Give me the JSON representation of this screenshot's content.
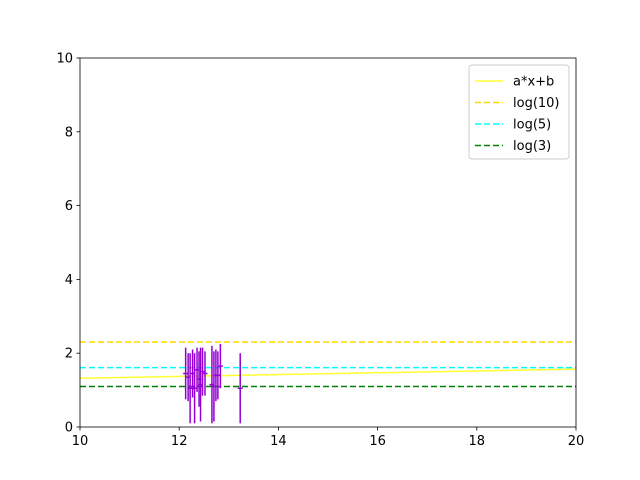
{
  "chart_data": {
    "type": "line",
    "title": "",
    "xlabel": "",
    "ylabel": "",
    "xlim": [
      10,
      20
    ],
    "ylim": [
      0,
      10
    ],
    "xticks": [
      10,
      12,
      14,
      16,
      18,
      20
    ],
    "yticks": [
      0,
      2,
      4,
      6,
      8,
      10
    ],
    "grid": false,
    "legend_position": "upper-right",
    "series": [
      {
        "name": "a*x+b",
        "style": "solid",
        "color": "#ffff33",
        "x": [
          10,
          20
        ],
        "y": [
          1.32,
          1.57
        ]
      },
      {
        "name": "log(10)",
        "style": "dashed",
        "color": "#ffd700",
        "x": [
          10,
          20
        ],
        "y": [
          2.3026,
          2.3026
        ]
      },
      {
        "name": "log(5)",
        "style": "dashed",
        "color": "#00ffff",
        "x": [
          10,
          20
        ],
        "y": [
          1.6094,
          1.6094
        ]
      },
      {
        "name": "log(3)",
        "style": "dashed",
        "color": "#008000",
        "x": [
          10,
          20
        ],
        "y": [
          1.0986,
          1.0986
        ]
      }
    ],
    "errorbars": {
      "color": "#9400d3",
      "points": [
        {
          "x": 12.13,
          "y": 1.45,
          "yerr": 0.7,
          "xerr": 0.05
        },
        {
          "x": 12.18,
          "y": 1.35,
          "yerr": 0.65,
          "xerr": 0.05
        },
        {
          "x": 12.22,
          "y": 1.05,
          "yerr": 0.95,
          "xerr": 0.05
        },
        {
          "x": 12.27,
          "y": 1.45,
          "yerr": 0.65,
          "xerr": 0.05
        },
        {
          "x": 12.31,
          "y": 1.05,
          "yerr": 0.95,
          "xerr": 0.05
        },
        {
          "x": 12.36,
          "y": 1.55,
          "yerr": 0.6,
          "xerr": 0.05
        },
        {
          "x": 12.4,
          "y": 1.3,
          "yerr": 0.75,
          "xerr": 0.05
        },
        {
          "x": 12.43,
          "y": 1.15,
          "yerr": 1.0,
          "xerr": 0.05
        },
        {
          "x": 12.47,
          "y": 1.5,
          "yerr": 0.65,
          "xerr": 0.05
        },
        {
          "x": 12.52,
          "y": 1.45,
          "yerr": 0.6,
          "xerr": 0.05
        },
        {
          "x": 12.66,
          "y": 1.15,
          "yerr": 1.05,
          "xerr": 0.05
        },
        {
          "x": 12.7,
          "y": 1.1,
          "yerr": 0.95,
          "xerr": 0.05
        },
        {
          "x": 12.74,
          "y": 1.4,
          "yerr": 0.7,
          "xerr": 0.05
        },
        {
          "x": 12.78,
          "y": 1.4,
          "yerr": 0.65,
          "xerr": 0.05
        },
        {
          "x": 12.83,
          "y": 1.65,
          "yerr": 0.6,
          "xerr": 0.05
        },
        {
          "x": 13.23,
          "y": 1.05,
          "yerr": 0.95,
          "xerr": 0.05
        }
      ]
    }
  }
}
